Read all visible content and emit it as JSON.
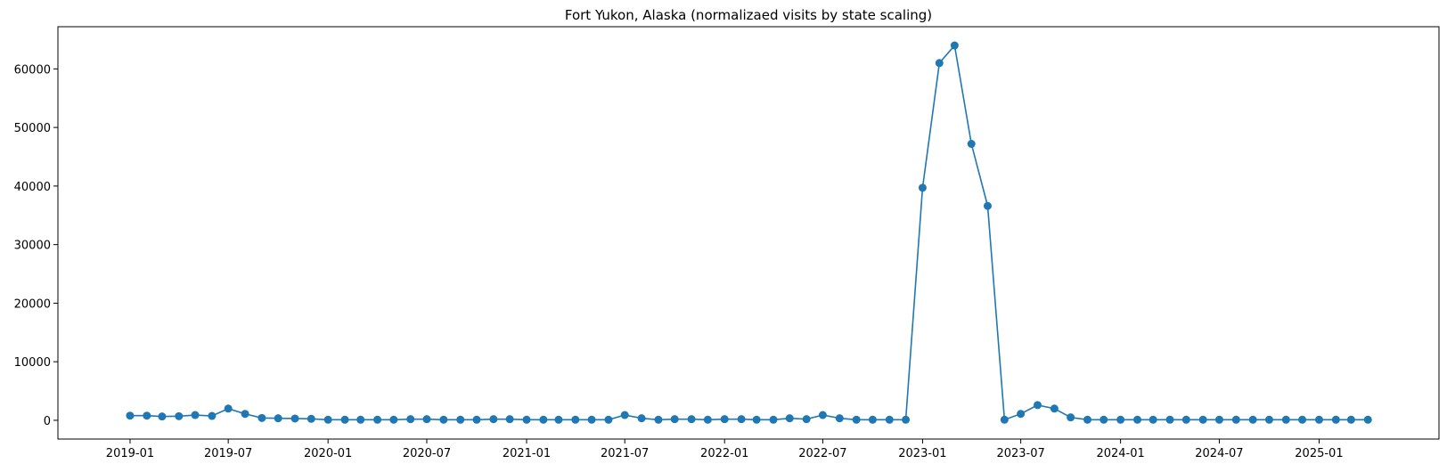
{
  "chart_data": {
    "type": "line",
    "title": "Fort Yukon, Alaska (normalizaed visits by state scaling)",
    "xlabel": "",
    "ylabel": "",
    "x_start": "2019-01",
    "x_end": "2025-04",
    "xlim": [
      "2018-08-21",
      "2025-08-10"
    ],
    "ylim": [
      -3200,
      67200
    ],
    "x_ticks": [
      "2019-01",
      "2019-07",
      "2020-01",
      "2020-07",
      "2021-01",
      "2021-07",
      "2022-01",
      "2022-07",
      "2023-01",
      "2023-07",
      "2024-01",
      "2024-07",
      "2025-01"
    ],
    "y_ticks": [
      0,
      10000,
      20000,
      30000,
      40000,
      50000,
      60000
    ],
    "grid": false,
    "marker": "circle",
    "series": [
      {
        "name": "",
        "color": "#1f77b4",
        "x": [
          "2019-01",
          "2019-02",
          "2019-03",
          "2019-04",
          "2019-05",
          "2019-06",
          "2019-07",
          "2019-08",
          "2019-09",
          "2019-10",
          "2019-11",
          "2019-12",
          "2020-01",
          "2020-02",
          "2020-03",
          "2020-04",
          "2020-05",
          "2020-06",
          "2020-07",
          "2020-08",
          "2020-09",
          "2020-10",
          "2020-11",
          "2020-12",
          "2021-01",
          "2021-02",
          "2021-03",
          "2021-04",
          "2021-05",
          "2021-06",
          "2021-07",
          "2021-08",
          "2021-09",
          "2021-10",
          "2021-11",
          "2021-12",
          "2022-01",
          "2022-02",
          "2022-03",
          "2022-04",
          "2022-05",
          "2022-06",
          "2022-07",
          "2022-08",
          "2022-09",
          "2022-10",
          "2022-11",
          "2022-12",
          "2023-01",
          "2023-02",
          "2023-03",
          "2023-04",
          "2023-05",
          "2023-06",
          "2023-07",
          "2023-08",
          "2023-09",
          "2023-10",
          "2023-11",
          "2023-12",
          "2024-01",
          "2024-02",
          "2024-03",
          "2024-04",
          "2024-05",
          "2024-06",
          "2024-07",
          "2024-08",
          "2024-09",
          "2024-10",
          "2024-11",
          "2024-12",
          "2025-01",
          "2025-02",
          "2025-03",
          "2025-04"
        ],
        "values": [
          800,
          800,
          650,
          700,
          900,
          750,
          2000,
          1100,
          400,
          350,
          300,
          250,
          100,
          100,
          100,
          100,
          100,
          200,
          200,
          100,
          100,
          100,
          200,
          200,
          100,
          100,
          100,
          100,
          100,
          100,
          900,
          350,
          100,
          200,
          200,
          100,
          200,
          200,
          100,
          100,
          350,
          200,
          900,
          350,
          100,
          100,
          100,
          100,
          39700,
          61000,
          64000,
          47200,
          36600,
          100,
          1100,
          2600,
          2000,
          500,
          100,
          100,
          100,
          100,
          100,
          100,
          100,
          100,
          100,
          100,
          100,
          100,
          100,
          100,
          100,
          100,
          100,
          100
        ]
      }
    ]
  }
}
